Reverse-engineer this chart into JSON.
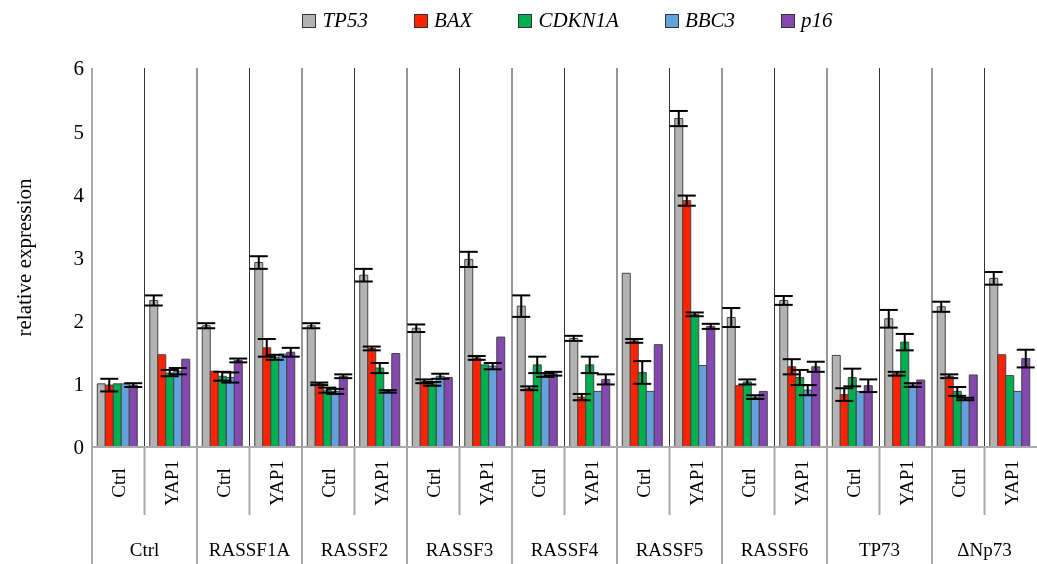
{
  "chart_data": {
    "type": "bar",
    "ylabel": "relative expression",
    "categories": [
      "Ctrl",
      "YAP1",
      "Ctrl",
      "YAP1",
      "Ctrl",
      "YAP1",
      "Ctrl",
      "YAP1",
      "Ctrl",
      "YAP1",
      "Ctrl",
      "YAP1",
      "Ctrl",
      "YAP1",
      "Ctrl",
      "YAP1",
      "Ctrl",
      "YAP1"
    ],
    "annotations": [
      "Ctrl",
      "RASSF1A",
      "RASSF2",
      "RASSF3",
      "RASSF4",
      "RASSF5",
      "RASSF6",
      "TP73",
      "ΔNp73"
    ],
    "series": [
      {
        "name": "TP53",
        "color": "#b3b3b3",
        "values": [
          1.0,
          2.32,
          1.92,
          2.92,
          1.92,
          2.72,
          1.88,
          2.97,
          2.23,
          1.72,
          2.75,
          5.2,
          2.05,
          2.32,
          1.45,
          2.03,
          2.22,
          2.67
        ],
        "errors": [
          null,
          0.08,
          0.04,
          0.1,
          0.04,
          0.1,
          0.06,
          0.12,
          0.17,
          0.04,
          null,
          0.12,
          0.15,
          0.07,
          null,
          0.14,
          0.08,
          0.1
        ]
      },
      {
        "name": "BAX",
        "color": "#ff2200",
        "values": [
          0.98,
          1.46,
          1.2,
          1.57,
          1.0,
          1.56,
          1.04,
          1.41,
          0.93,
          0.79,
          1.68,
          3.9,
          0.97,
          1.27,
          0.83,
          1.16,
          1.12,
          1.46
        ],
        "errors": [
          0.1,
          null,
          null,
          0.14,
          0.02,
          0.03,
          0.03,
          0.03,
          0.03,
          0.05,
          0.03,
          0.08,
          null,
          0.12,
          0.1,
          0.03,
          0.03,
          null
        ]
      },
      {
        "name": "CDKN1A",
        "color": "#00b050",
        "values": [
          1.0,
          1.17,
          1.12,
          1.42,
          0.9,
          1.25,
          1.0,
          1.3,
          1.3,
          1.3,
          1.18,
          2.1,
          1.03,
          1.1,
          1.1,
          1.66,
          0.88,
          1.13
        ],
        "errors": [
          null,
          0.05,
          0.07,
          0.04,
          0.04,
          0.08,
          0.03,
          null,
          0.13,
          0.13,
          0.18,
          0.03,
          0.04,
          0.12,
          0.14,
          0.13,
          0.07,
          null
        ]
      },
      {
        "name": "BBC3",
        "color": "#64a0dc",
        "values": [
          1.0,
          1.2,
          1.1,
          1.47,
          0.88,
          0.88,
          1.12,
          1.28,
          1.14,
          0.88,
          0.88,
          1.29,
          0.79,
          0.9,
          0.88,
          0.98,
          0.76,
          0.88
        ],
        "errors": [
          null,
          0.05,
          0.08,
          null,
          0.04,
          0.02,
          0.04,
          0.05,
          0.03,
          null,
          null,
          null,
          0.03,
          0.08,
          null,
          0.03,
          0.02,
          null
        ]
      },
      {
        "name": "p16",
        "color": "#8547b0",
        "values": [
          0.98,
          1.39,
          1.37,
          1.5,
          1.12,
          1.48,
          1.1,
          1.74,
          1.16,
          1.07,
          1.62,
          1.91,
          0.88,
          1.27,
          0.97,
          1.06,
          1.14,
          1.4
        ],
        "errors": [
          0.03,
          null,
          0.03,
          0.07,
          0.03,
          null,
          null,
          null,
          0.03,
          0.08,
          null,
          0.04,
          null,
          0.08,
          0.1,
          null,
          null,
          0.14
        ]
      }
    ],
    "ylim": [
      0,
      6
    ],
    "yticks": [
      0,
      1,
      2,
      3,
      4,
      5,
      6
    ],
    "grid": "x",
    "legend": "top"
  }
}
